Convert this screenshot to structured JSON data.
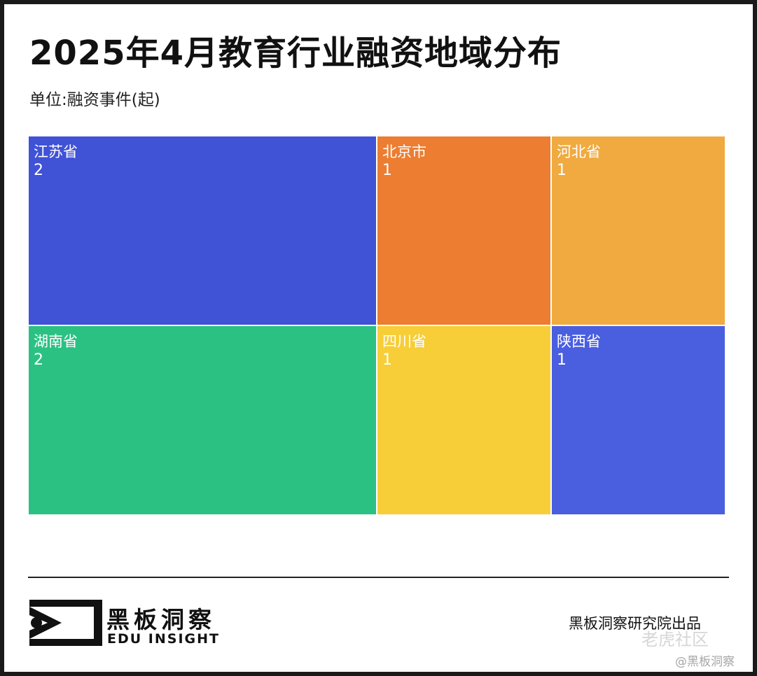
{
  "title": "2025年4月教育行业融资地域分布",
  "unit_label": "单位:融资事件(起)",
  "chart_data": {
    "type": "treemap",
    "items": [
      {
        "name": "江苏省",
        "value": 2,
        "color": "#4052D6"
      },
      {
        "name": "湖南省",
        "value": 2,
        "color": "#2BC183"
      },
      {
        "name": "北京市",
        "value": 1,
        "color": "#EC7D31"
      },
      {
        "name": "四川省",
        "value": 1,
        "color": "#F7CE38"
      },
      {
        "name": "河北省",
        "value": 1,
        "color": "#F0AA3F"
      },
      {
        "name": "陕西省",
        "value": 1,
        "color": "#4A5EE0"
      }
    ]
  },
  "brand": {
    "logo_cn": "黑板洞察",
    "logo_en": "EDU INSIGHT"
  },
  "credit": "黑板洞察研究院出品",
  "watermark": {
    "site": "老虎社区",
    "handle": "@黑板洞察"
  }
}
